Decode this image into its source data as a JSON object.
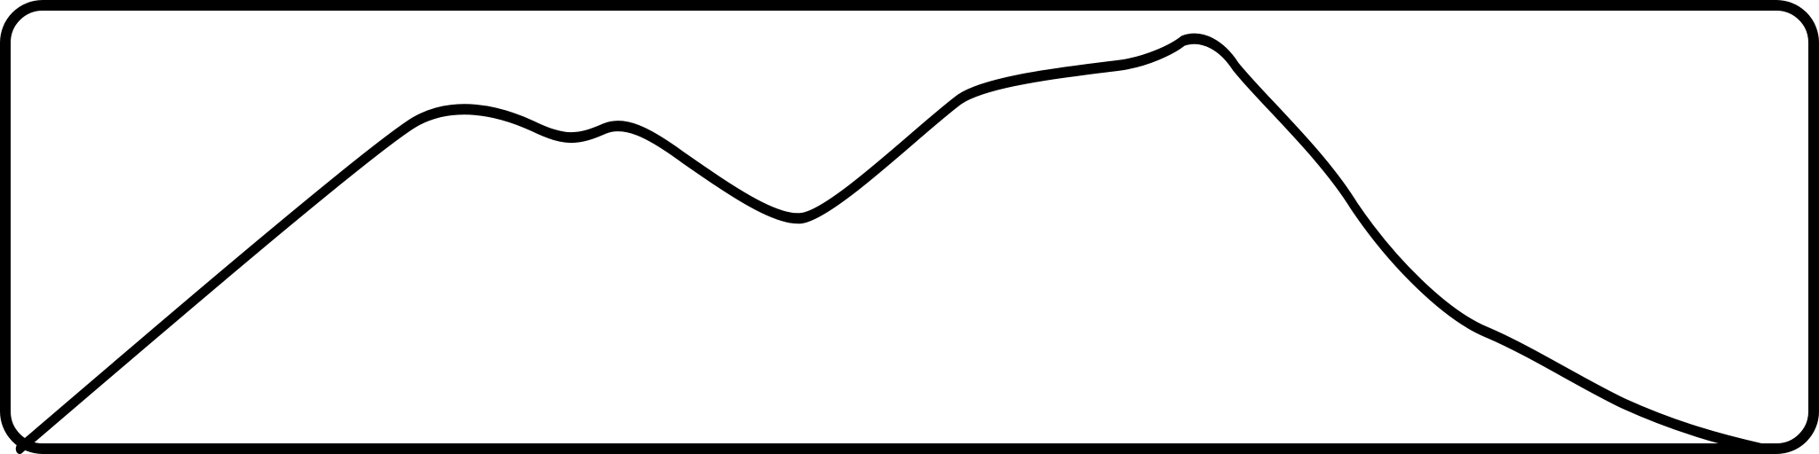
{
  "canvas": {
    "background": "#ffffff",
    "stroke": "#000000",
    "shapes": [
      "rounded-frame",
      "mountain-silhouette"
    ]
  }
}
